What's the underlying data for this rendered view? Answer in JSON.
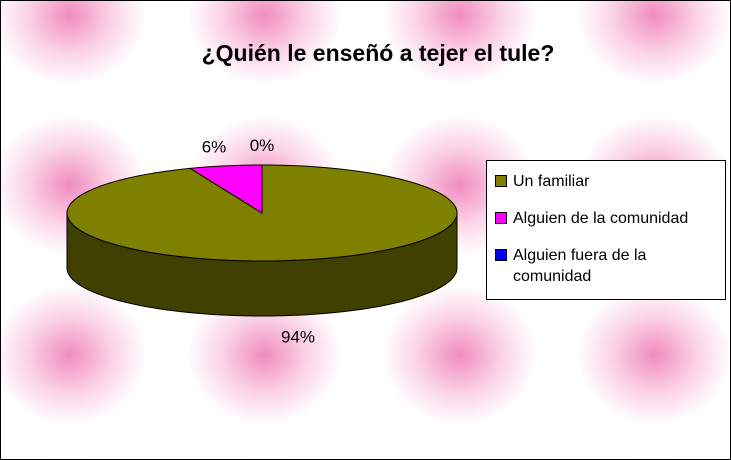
{
  "chart_data": {
    "type": "pie",
    "title": "¿Quién le enseñó a tejer el tule?",
    "categories": [
      "Un familiar",
      "Alguien de la comunidad",
      "Alguien fuera de la comunidad"
    ],
    "values": [
      94,
      6,
      0
    ],
    "value_labels": [
      "94%",
      "6%",
      "0%"
    ],
    "colors": [
      "#808000",
      "#ff00ff",
      "#0000ff"
    ],
    "legend": "right"
  }
}
